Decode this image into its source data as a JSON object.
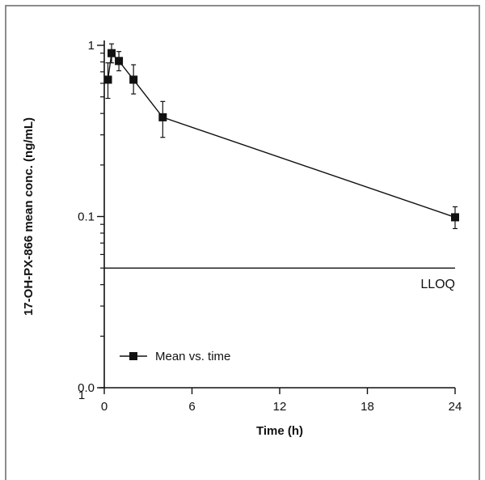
{
  "chart_data": {
    "type": "line",
    "title": "",
    "xlabel": "Time (h)",
    "ylabel": "17-OH-PX-866 mean conc. (ng/mL)",
    "y_scale": "log",
    "xlim": [
      0,
      24
    ],
    "ylim": [
      0.01,
      1
    ],
    "x_ticks": [
      0,
      6,
      12,
      18,
      24
    ],
    "x_tick_labels": [
      "0",
      "6",
      "12",
      "18",
      "24"
    ],
    "y_tick_labels": [
      {
        "value": 1,
        "text": "1"
      },
      {
        "value": 0.1,
        "text": "0.1"
      },
      {
        "value": 0.01,
        "text": "0.0"
      }
    ],
    "x_origin_label": "1",
    "legend": {
      "position": "bottom-left",
      "entries": [
        "Mean vs. time"
      ]
    },
    "series": [
      {
        "name": "Mean vs. time",
        "marker": "square",
        "color": "#111111",
        "points": [
          {
            "x": 0.25,
            "y": 0.63,
            "err_low": 0.49,
            "err_high": 0.79
          },
          {
            "x": 0.5,
            "y": 0.9,
            "err_low": 0.79,
            "err_high": 1.02
          },
          {
            "x": 1,
            "y": 0.81,
            "err_low": 0.71,
            "err_high": 0.92
          },
          {
            "x": 2,
            "y": 0.63,
            "err_low": 0.52,
            "err_high": 0.77
          },
          {
            "x": 4,
            "y": 0.38,
            "err_low": 0.29,
            "err_high": 0.47
          },
          {
            "x": 24,
            "y": 0.099,
            "err_low": 0.085,
            "err_high": 0.114
          }
        ]
      }
    ],
    "reference_lines": [
      {
        "label": "LLOQ",
        "y": 0.05
      }
    ],
    "grid": false
  }
}
